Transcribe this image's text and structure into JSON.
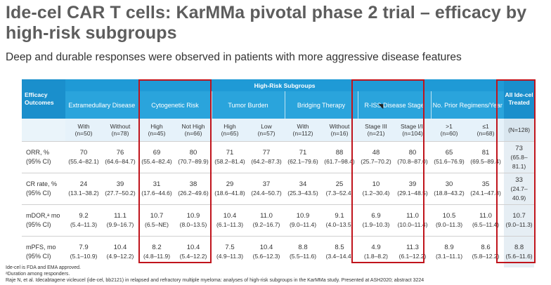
{
  "header": {
    "title": "Ide-cel CAR T cells: KarMMa pivotal phase 2 trial – efficacy by high-risk subgroups",
    "subtitle": "Deep and durable responses were observed in patients with more aggressive disease features"
  },
  "table": {
    "efficacy_header": "Efficacy Outcomes",
    "high_risk_header": "High-Risk Subgroups",
    "all_header": "All Ide-cel Treated",
    "groups": [
      "Extramedullary Disease",
      "Cytogenetic Risk",
      "Tumor Burden",
      "Bridging Therapy",
      "R-ISS Disease Stage",
      "No. Prior Regimens/Year"
    ],
    "subgroups": [
      [
        "With",
        "(n=50)"
      ],
      [
        "Without",
        "(n=78)"
      ],
      [
        "High",
        "(n=45)"
      ],
      [
        "Not High",
        "(n=66)"
      ],
      [
        "High",
        "(n=65)"
      ],
      [
        "Low",
        "(n=57)"
      ],
      [
        "With",
        "(n=112)"
      ],
      [
        "Without",
        "(n=16)"
      ],
      [
        "Stage III",
        "(n=21)"
      ],
      [
        "Stage I/II",
        "(n=104)"
      ],
      [
        ">1",
        "(n=60)"
      ],
      [
        "≤1",
        "(n=68)"
      ],
      [
        "",
        "(N=128)"
      ]
    ],
    "rows": [
      {
        "label1": "ORR, %",
        "label2": "(95% CI)",
        "vals": [
          "70",
          "76",
          "69",
          "80",
          "71",
          "77",
          "71",
          "88",
          "48",
          "80",
          "65",
          "81",
          "73"
        ],
        "cis": [
          "(55.4–82.1)",
          "(64.6–84.7)",
          "(55.4–82.4)",
          "(70.7–89.9)",
          "(58.2–81.4)",
          "(64.2–87.3)",
          "(62.1–79.6)",
          "(61.7–98.4)",
          "(25.7–70.2)",
          "(70.8–87.0)",
          "(51.6–76.9)",
          "(69.5–89.4)",
          "(65.8–81.1)"
        ]
      },
      {
        "label1": "CR rate, %",
        "label2": "(95% CI)",
        "vals": [
          "24",
          "39",
          "31",
          "38",
          "29",
          "37",
          "34",
          "25",
          "10",
          "39",
          "30",
          "35",
          "33"
        ],
        "cis": [
          "(13.1–38.2)",
          "(27.7–50.2)",
          "(17.6–44.6)",
          "(26.2–49.6)",
          "(18.6–41.8)",
          "(24.4–50.7)",
          "(25.3–43.5)",
          "(7.3–52.4)",
          "(1.2–30.4)",
          "(29.1–48.5)",
          "(18.8–43.2)",
          "(24.1–47.8)",
          "(24.7–40.9)"
        ]
      },
      {
        "label1": "mDOR,ᵃ mo",
        "label2": "(95% CI)",
        "vals": [
          "9.2",
          "11.1",
          "10.7",
          "10.9",
          "10.4",
          "11.0",
          "10.9",
          "9.1",
          "6.9",
          "11.0",
          "10.5",
          "11.0",
          "10.7"
        ],
        "cis": [
          "(5.4–11.3)",
          "(9.9–16.7)",
          "(6.5–NE)",
          "(8.0–13.5)",
          "(6.1–11.3)",
          "(9.2–16.7)",
          "(9.0–11.4)",
          "(4.0–13.5)",
          "(1.9–10.3)",
          "(10.0–11.4)",
          "(9.0–11.3)",
          "(6.5–11.4)",
          "(9.0–11.3)"
        ]
      },
      {
        "label1": "mPFS, mo",
        "label2": "(95% CI)",
        "vals": [
          "7.9",
          "10.4",
          "8.2",
          "10.4",
          "7.5",
          "10.4",
          "8.8",
          "8.5",
          "4.9",
          "11.3",
          "8.9",
          "8.6",
          "8.8"
        ],
        "cis": [
          "(5.1–10.9)",
          "(4.9–12.2)",
          "(4.8–11.9)",
          "(5.4–12.2)",
          "(4.9–11.3)",
          "(5.6–12.3)",
          "(5.5–11.6)",
          "(3.4–14.4)",
          "(1.8–8.2)",
          "(6.1–12.2)",
          "(3.1–11.1)",
          "(5.8–12.2)",
          "(5.6–11.6)"
        ]
      }
    ]
  },
  "footnotes": {
    "line1": "Ide-cel is FDA and EMA approved.",
    "line2": "ᵃDuration among responders.",
    "line3": "Raje N, et al. Idecabtagene vicleucel (ide-cel, bb2121) in relapsed and refractory multiple myeloma: analyses of high-risk subgroups in the KarMMa study. Presented at ASH2020; abstract 3224"
  },
  "colors": {
    "header_blue": "#1f9ad6",
    "highlight_red": "#c0141c",
    "title_gray": "#5d5d5d"
  }
}
